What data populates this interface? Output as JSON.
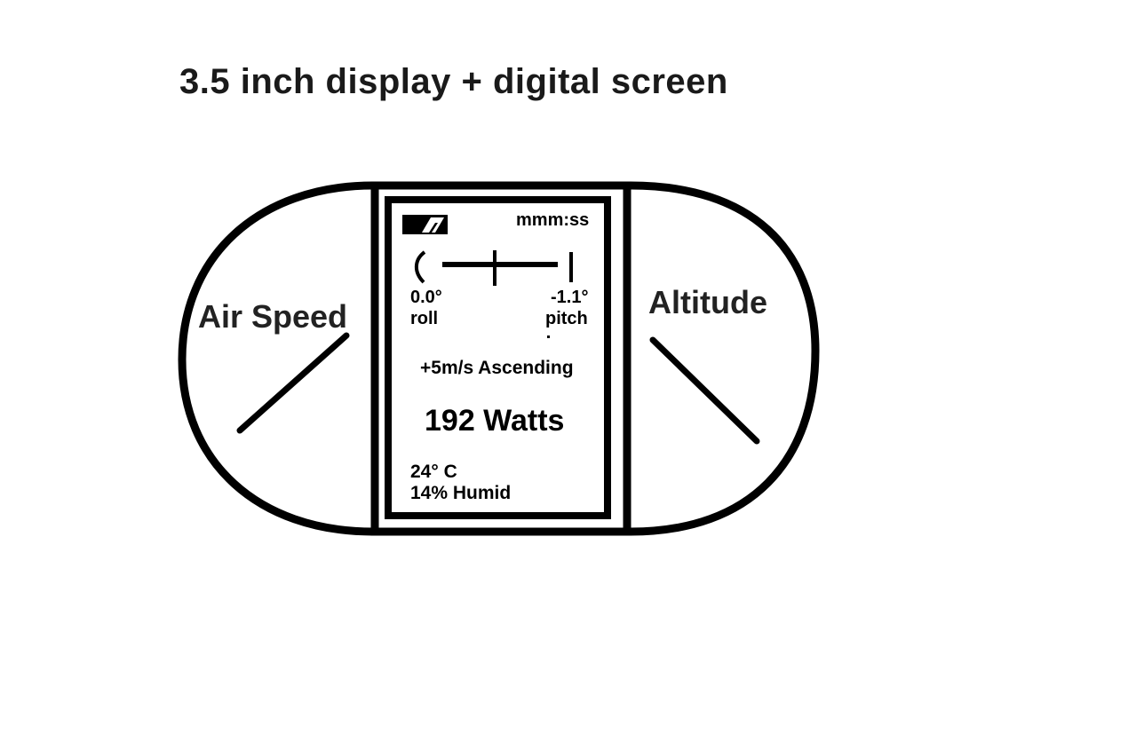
{
  "diagram": {
    "title": "3.5 inch display + digital screen",
    "left_gauge": {
      "label": "Air Speed"
    },
    "right_gauge": {
      "label": "Altitude"
    },
    "screen": {
      "clock": "mmm:ss",
      "roll": {
        "value": "0.0°",
        "label": "roll"
      },
      "pitch": {
        "value": "-1.1°",
        "label": "pitch"
      },
      "climb": "+5m/s Ascending",
      "power": "192 Watts",
      "temperature": "24° C",
      "humidity": "14% Humid"
    }
  },
  "colors": {
    "ink": "#000000",
    "background": "#ffffff",
    "label_text": "#222222"
  }
}
